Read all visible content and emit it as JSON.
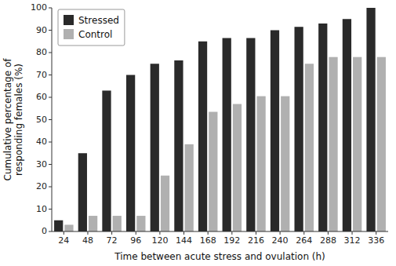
{
  "chart_data": {
    "type": "bar",
    "xlabel": "Time between acute stress and ovulation (h)",
    "ylabel": "Cumulative percentage of\nresponding females (%)",
    "categories": [
      24,
      48,
      72,
      96,
      120,
      144,
      168,
      192,
      216,
      240,
      264,
      288,
      312,
      336
    ],
    "series": [
      {
        "name": "Stressed",
        "color": "#2a2a2a",
        "values": [
          5,
          35,
          63,
          70,
          75,
          76.5,
          85,
          86.5,
          86.5,
          90,
          91.5,
          93,
          95,
          100
        ]
      },
      {
        "name": "Control",
        "color": "#b0b0b0",
        "values": [
          3,
          7,
          7,
          7,
          25,
          39,
          53.5,
          57,
          60.5,
          60.5,
          75,
          78,
          78,
          78
        ]
      }
    ],
    "ylim": [
      0,
      100
    ],
    "yticks": [
      0,
      10,
      20,
      30,
      40,
      50,
      60,
      70,
      80,
      90,
      100
    ],
    "legend": "upper left",
    "grid": false
  }
}
